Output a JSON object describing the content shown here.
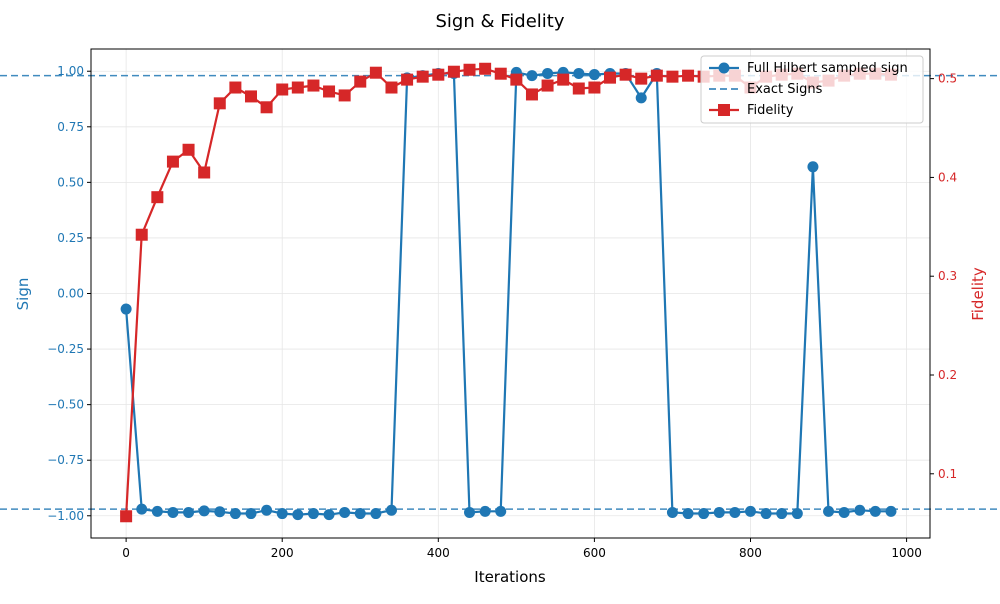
{
  "chart_data": {
    "type": "line",
    "title": "Sign & Fidelity",
    "xlabel": "Iterations",
    "ylabel_left": "Sign",
    "ylabel_right": "Fidelity",
    "xlim": [
      -45,
      1030
    ],
    "ylim_left": [
      -1.1,
      1.1
    ],
    "ylim_right": [
      0.035,
      0.53
    ],
    "x_ticks": [
      0,
      200,
      400,
      600,
      800,
      1000
    ],
    "y_left_ticks": [
      -1.0,
      -0.75,
      -0.5,
      -0.25,
      0.0,
      0.25,
      0.5,
      0.75,
      1.0
    ],
    "y_left_tick_labels": [
      "−1.00",
      "−0.75",
      "−0.50",
      "−0.25",
      "0.00",
      "0.25",
      "0.50",
      "0.75",
      "1.00"
    ],
    "y_right_ticks": [
      0.1,
      0.2,
      0.3,
      0.4,
      0.5
    ],
    "y_right_tick_labels": [
      "0.1",
      "0.2",
      "0.3",
      "0.4",
      "0.5"
    ],
    "grid": true,
    "legend_position": "top-right",
    "colors": {
      "sign": "#1f77b4",
      "fidelity": "#d62728",
      "exact": "#1f77b4"
    },
    "exact_sign_levels": [
      0.98,
      -0.97
    ],
    "x": [
      0,
      20,
      40,
      60,
      80,
      100,
      120,
      140,
      160,
      180,
      200,
      220,
      240,
      260,
      280,
      300,
      320,
      340,
      360,
      380,
      400,
      420,
      440,
      460,
      480,
      500,
      520,
      540,
      560,
      580,
      600,
      620,
      640,
      660,
      680,
      700,
      720,
      740,
      760,
      780,
      800,
      820,
      840,
      860,
      880,
      900,
      920,
      940,
      960,
      980
    ],
    "series": [
      {
        "name": "Full Hilbert sampled sign",
        "axis": "left",
        "marker": "circle",
        "values": [
          -0.07,
          -0.97,
          -0.98,
          -0.985,
          -0.985,
          -0.978,
          -0.982,
          -0.99,
          -0.99,
          -0.975,
          -0.99,
          -0.995,
          -0.99,
          -0.995,
          -0.985,
          -0.99,
          -0.99,
          -0.975,
          0.97,
          0.98,
          0.99,
          0.99,
          -0.985,
          -0.98,
          -0.98,
          0.995,
          0.98,
          0.99,
          0.995,
          0.99,
          0.985,
          0.99,
          0.99,
          0.88,
          0.99,
          -0.985,
          -0.99,
          -0.99,
          -0.985,
          -0.985,
          -0.98,
          -0.99,
          -0.99,
          -0.99,
          0.57,
          -0.98,
          -0.985,
          -0.975,
          -0.98,
          -0.98
        ]
      },
      {
        "name": "Exact Signs",
        "axis": "left",
        "style": "dashed"
      },
      {
        "name": "Fidelity",
        "axis": "right",
        "marker": "square",
        "values": [
          0.057,
          0.342,
          0.38,
          0.416,
          0.428,
          0.405,
          0.475,
          0.491,
          0.482,
          0.471,
          0.489,
          0.491,
          0.493,
          0.487,
          0.483,
          0.497,
          0.506,
          0.491,
          0.499,
          0.502,
          0.504,
          0.507,
          0.509,
          0.51,
          0.505,
          0.499,
          0.484,
          0.493,
          0.499,
          0.49,
          0.491,
          0.501,
          0.504,
          0.5,
          0.503,
          0.502,
          0.503,
          0.502,
          0.503,
          0.503,
          0.491,
          0.502,
          0.504,
          0.505,
          0.496,
          0.498,
          0.503,
          0.505,
          0.505,
          0.504
        ]
      }
    ]
  }
}
